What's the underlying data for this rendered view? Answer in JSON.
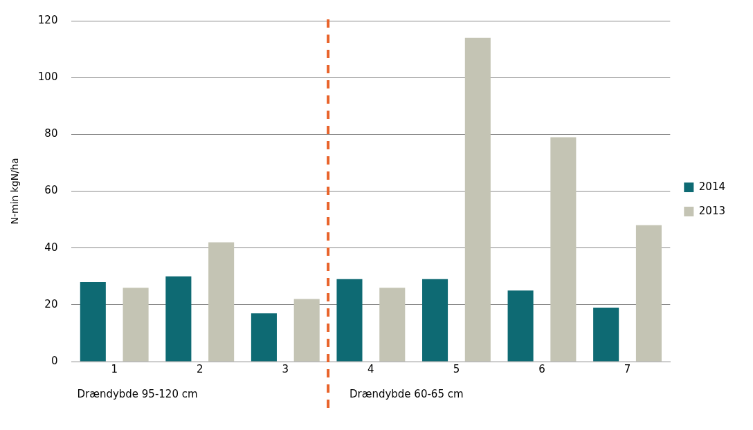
{
  "chart_data": {
    "type": "bar",
    "ylabel": "N-min kgN/ha",
    "x": [
      1,
      2,
      3,
      4,
      5,
      6,
      7
    ],
    "xlim": [
      0.5,
      7.5
    ],
    "xticks": [
      1,
      2,
      3,
      4,
      5,
      6,
      7
    ],
    "series": [
      {
        "name": "2014",
        "color": "#0e6a73",
        "values": [
          28,
          30,
          17,
          29,
          29,
          25,
          19
        ]
      },
      {
        "name": "2013",
        "color": "#c4c4b4",
        "values": [
          26,
          42,
          22,
          26,
          114,
          79,
          48
        ]
      }
    ],
    "ylim": [
      0,
      120
    ],
    "yticks": [
      0,
      20,
      40,
      60,
      80,
      100,
      120
    ],
    "grid": "y",
    "legend": "right",
    "ref_lines": [
      {
        "axis": "x",
        "value": 3.5,
        "color": "#e8632a",
        "line_style": "dashed"
      }
    ],
    "annotations": [
      "Drændybde 95-120 cm",
      "Drændybde 60-65 cm"
    ]
  }
}
